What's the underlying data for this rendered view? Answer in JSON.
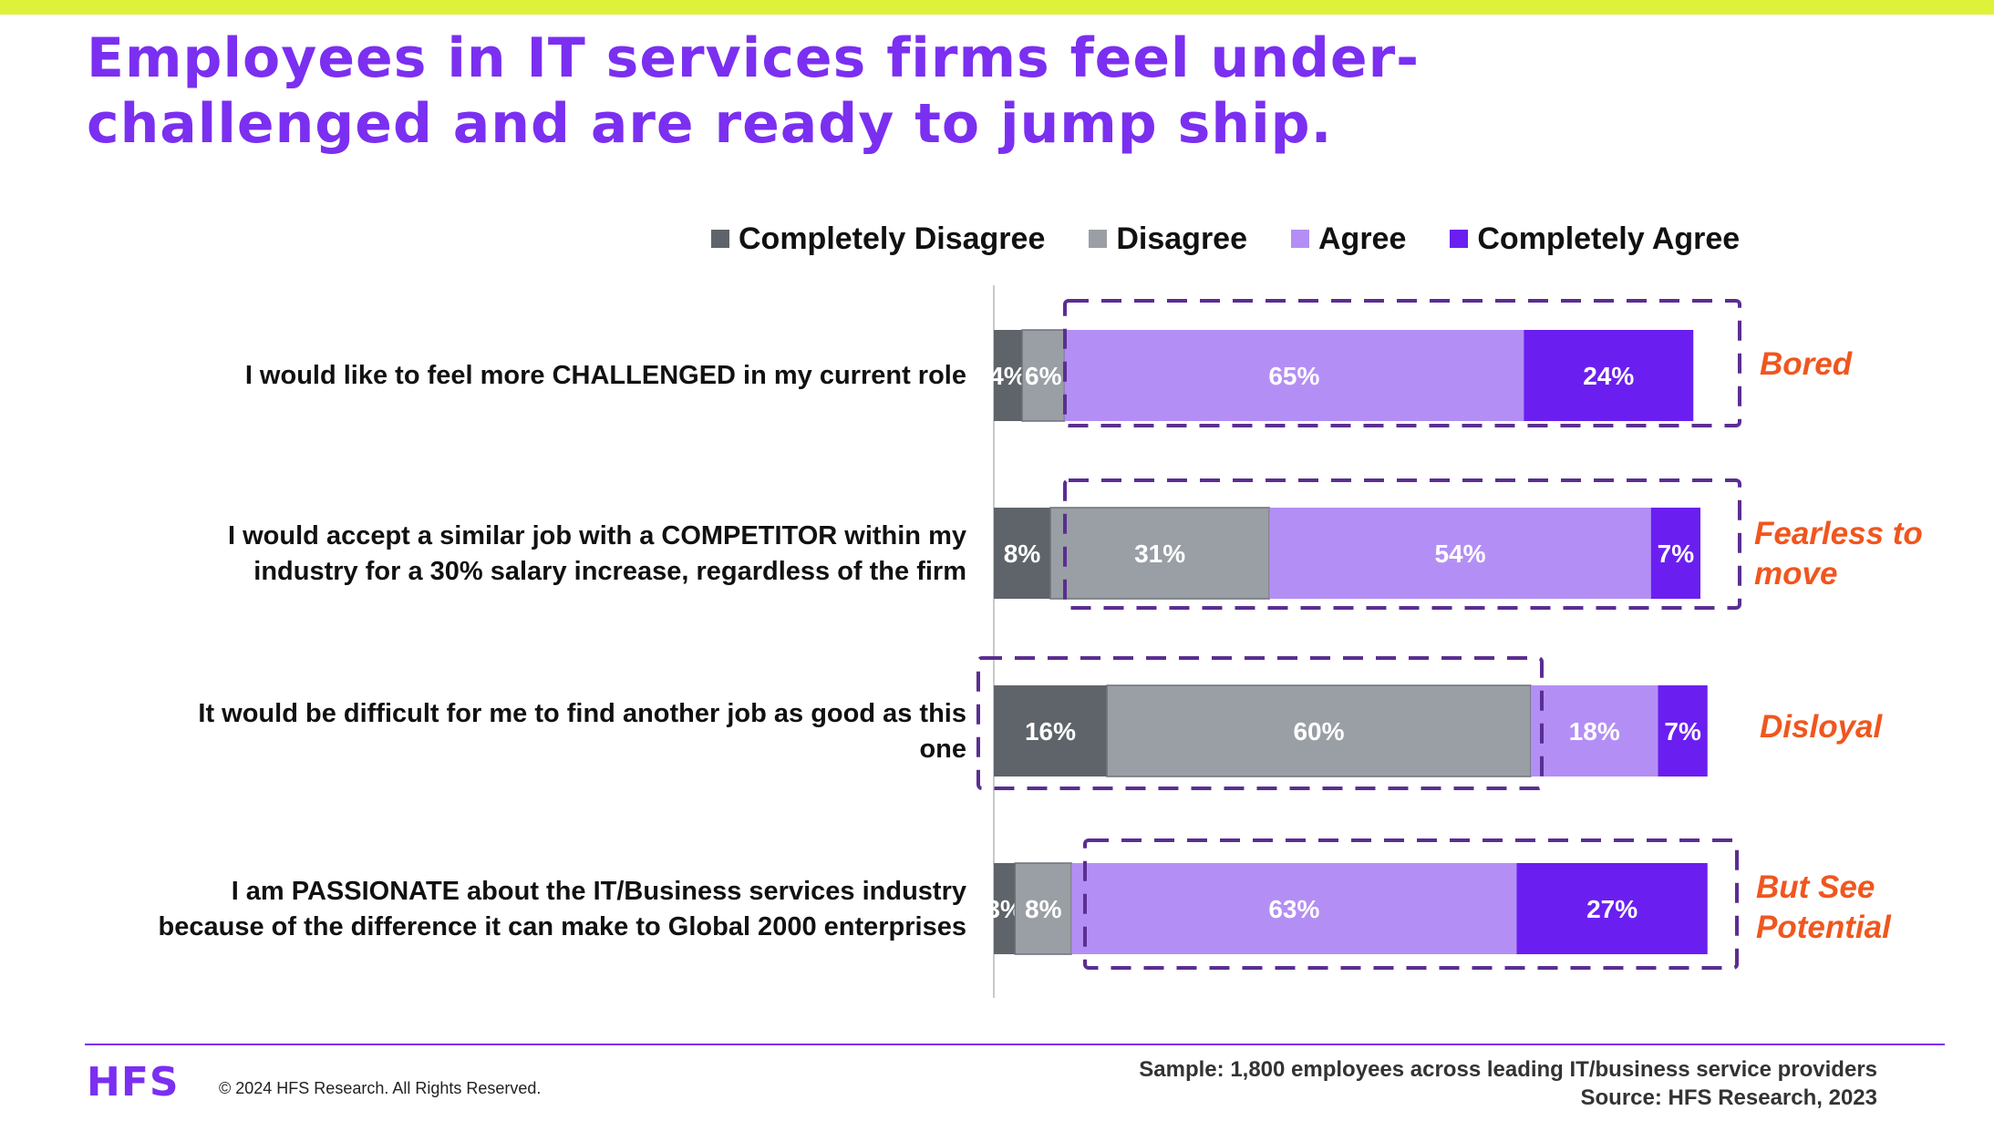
{
  "colors": {
    "completely_disagree": "#5f646a",
    "disagree": "#9a9fa5",
    "agree": "#b38ff5",
    "completely_agree": "#6a1ff0",
    "title": "#7b2ff0",
    "accent_lime": "#dff23a",
    "annotation": "#f0561e",
    "highlight_border": "#5b2e91",
    "footer_rule": "#7b2ff0"
  },
  "page": {
    "title_line1": "Employees in IT services firms feel under-",
    "title_line2": "challenged and are ready to jump ship."
  },
  "chart_data": {
    "type": "bar",
    "orientation": "horizontal",
    "stacked": true,
    "xlim": [
      0,
      100
    ],
    "unit": "%",
    "categories": [
      "I would like to feel more CHALLENGED in my current role",
      "I would accept a similar job with a COMPETITOR within my industry for a 30% salary increase, regardless of the firm",
      "It would be difficult for me to find another job as good as this one",
      "I am PASSIONATE about the IT/Business services industry because of the difference it can make to Global 2000 enterprises"
    ],
    "category_lines": [
      [
        "I would like to feel more CHALLENGED in my current role"
      ],
      [
        "I would accept a similar job with a COMPETITOR within my",
        "industry for a 30% salary increase, regardless of the firm"
      ],
      [
        "It would be difficult for me to find another job as good as this",
        "one"
      ],
      [
        "I am PASSIONATE about the IT/Business services industry",
        "because of the difference it can make to Global 2000 enterprises"
      ]
    ],
    "series": [
      {
        "name": "Completely Disagree",
        "color": "#5f646a",
        "values": [
          4,
          8,
          16,
          3
        ],
        "labels": [
          "4%",
          "8%",
          "16%",
          "3%"
        ]
      },
      {
        "name": "Disagree",
        "color": "#9a9fa5",
        "values": [
          6,
          31,
          60,
          8
        ],
        "labels": [
          "6%",
          "31%",
          "60%",
          "8%"
        ]
      },
      {
        "name": "Agree",
        "color": "#b38ff5",
        "values": [
          65,
          54,
          18,
          63
        ],
        "labels": [
          "65%",
          "54%",
          "18%",
          "63%"
        ]
      },
      {
        "name": "Completely Agree",
        "color": "#6a1ff0",
        "values": [
          24,
          7,
          7,
          27
        ],
        "labels": [
          "24%",
          "7%",
          "7%",
          "27%"
        ]
      }
    ],
    "legend_position": "top",
    "grid": false,
    "annotations": [
      {
        "text": "Bored",
        "row": 0
      },
      {
        "text": "Fearless to move",
        "lines": [
          "Fearless to",
          "move"
        ],
        "row": 1
      },
      {
        "text": "Disloyal",
        "row": 2
      },
      {
        "text": "But See Potential",
        "lines": [
          "But See",
          "Potential"
        ],
        "row": 3
      }
    ]
  },
  "footer": {
    "logo": "HFS",
    "copyright": "© 2024 HFS Research. All Rights Reserved.",
    "sample": "Sample:   1,800 employees across leading IT/business service providers",
    "source": "Source:   HFS Research, 2023"
  }
}
